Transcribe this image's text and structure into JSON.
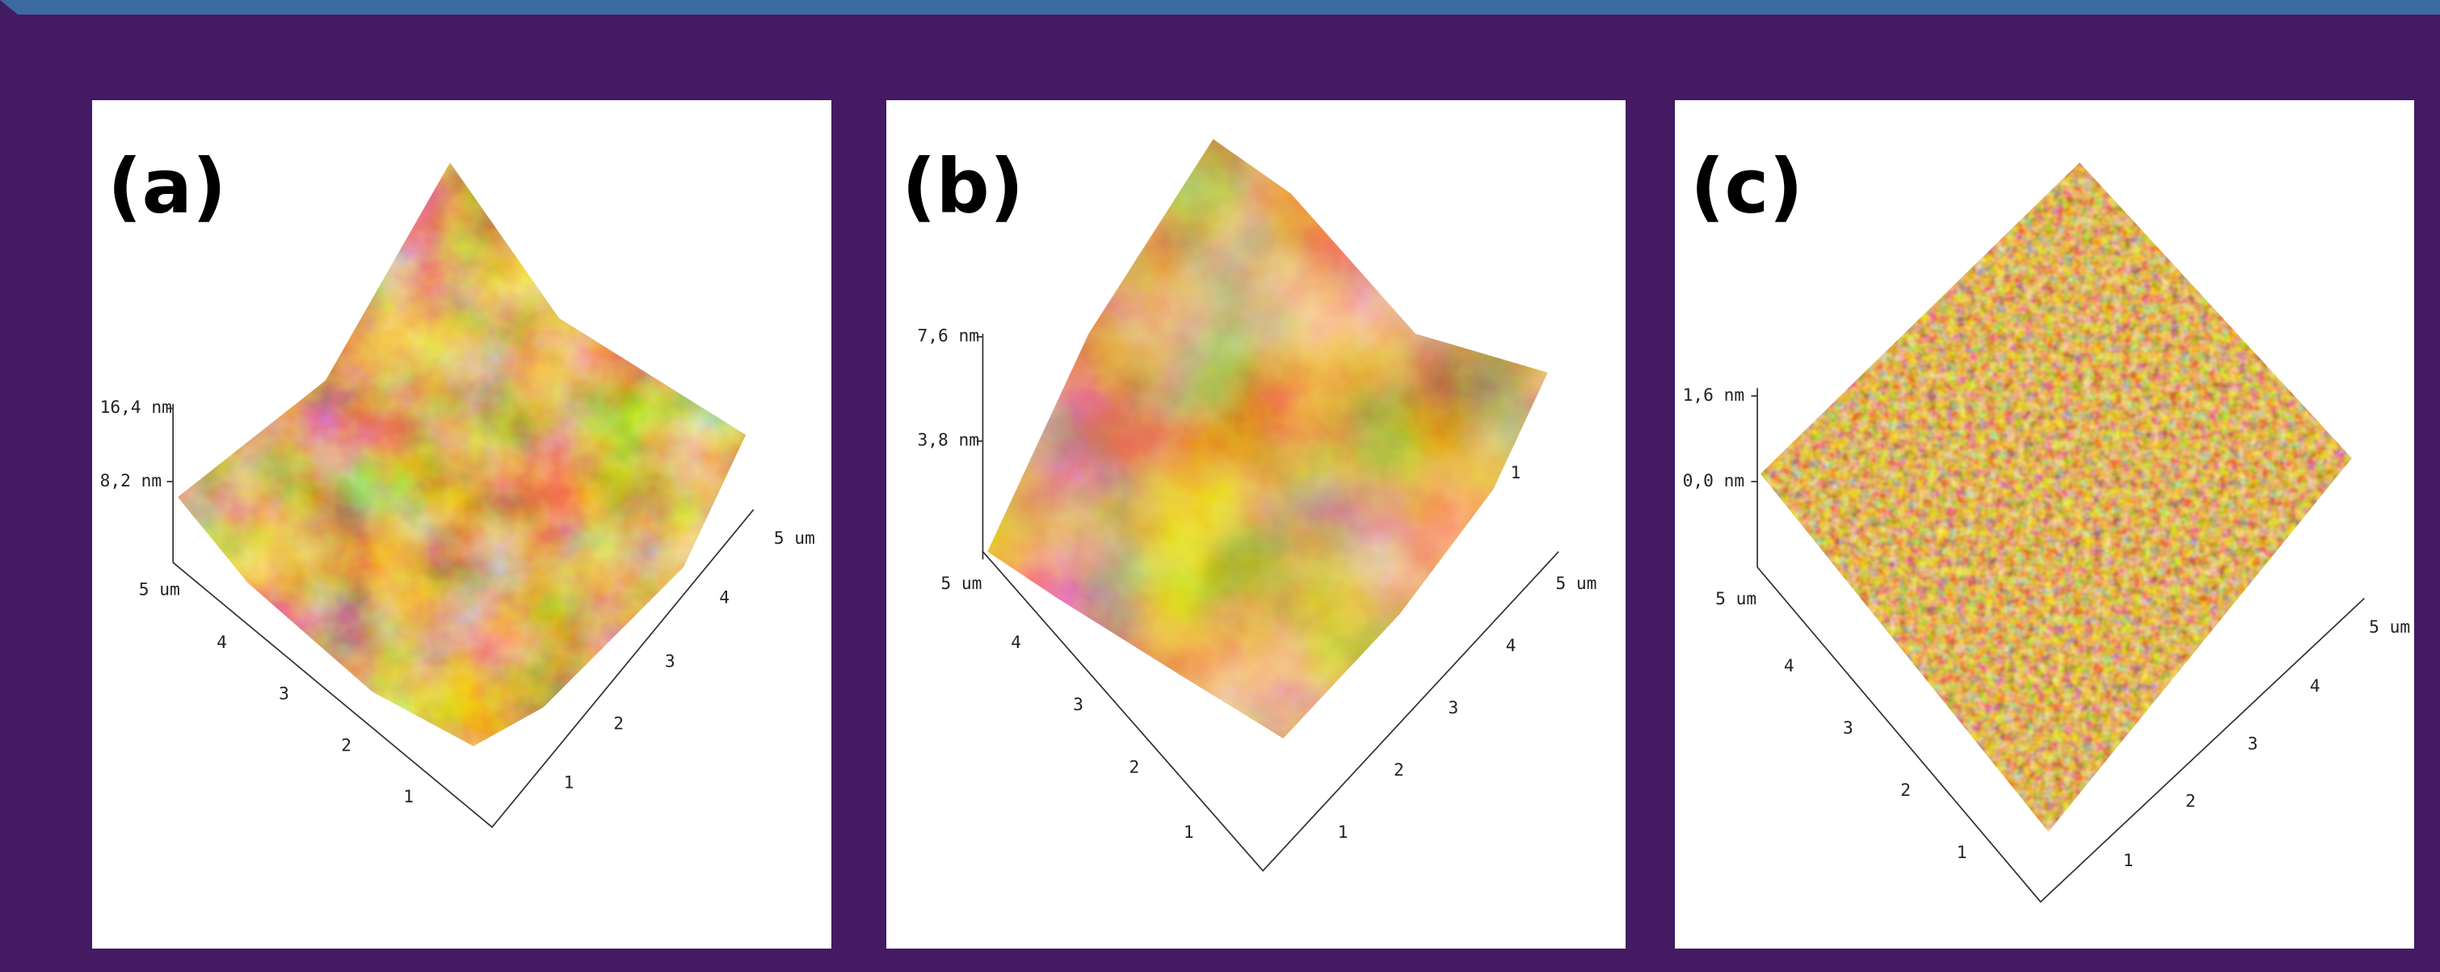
{
  "panels": [
    {
      "label": "(a)",
      "z_labels": [
        "16,4 nm",
        "8,2 nm"
      ],
      "left_axis": [
        "5 um",
        "4",
        "3",
        "2",
        "1"
      ],
      "right_axis": [
        "1",
        "2",
        "3",
        "4",
        "5 um"
      ]
    },
    {
      "label": "(b)",
      "z_labels": [
        "7,6 nm",
        "3,8 nm"
      ],
      "left_axis": [
        "5 um",
        "4",
        "3",
        "2",
        "1"
      ],
      "right_axis": [
        "1",
        "2",
        "3",
        "4",
        "5 um"
      ],
      "extra_labels": [
        "1"
      ]
    },
    {
      "label": "(c)",
      "z_labels": [
        "1,6 nm",
        "0,0 nm"
      ],
      "left_axis": [
        "5 um",
        "4",
        "3",
        "2",
        "1"
      ],
      "right_axis": [
        "1",
        "2",
        "3",
        "4",
        "5 um"
      ]
    }
  ]
}
